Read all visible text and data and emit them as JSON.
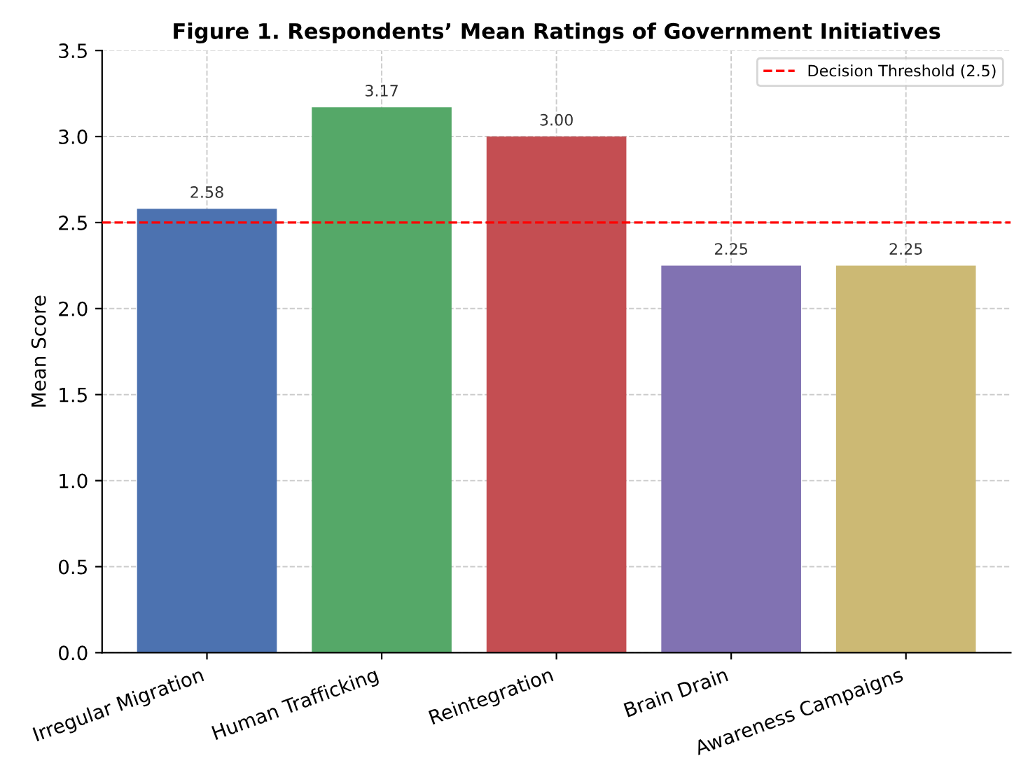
{
  "chart_data": {
    "type": "bar",
    "title": "Figure 1. Respondents’ Mean Ratings of Government Initiatives",
    "ylabel": "Mean Score",
    "categories": [
      "Irregular Migration",
      "Human Trafficking",
      "Reintegration",
      "Brain Drain",
      "Awareness Campaigns"
    ],
    "values": [
      2.58,
      3.17,
      3.0,
      2.25,
      2.25
    ],
    "value_labels": [
      "2.58",
      "3.17",
      "3.00",
      "2.25",
      "2.25"
    ],
    "colors": [
      "#4c72b0",
      "#55a868",
      "#c44e52",
      "#8172b2",
      "#ccb974"
    ],
    "ylim": [
      0,
      3.5
    ],
    "yticks": [
      {
        "value": 0,
        "label": "0.0"
      },
      {
        "value": 0.5,
        "label": "0.5"
      },
      {
        "value": 1,
        "label": "1.0"
      },
      {
        "value": 1.5,
        "label": "1.5"
      },
      {
        "value": 2,
        "label": "2.0"
      },
      {
        "value": 2.5,
        "label": "2.5"
      },
      {
        "value": 3,
        "label": "3.0"
      },
      {
        "value": 3.5,
        "label": "3.5"
      }
    ],
    "ref_lines": [
      {
        "axis": "y",
        "value": 2.5,
        "label": "Decision Threshold (2.5)",
        "color": "#ff0000",
        "line_style": "dashed"
      }
    ],
    "grid": true,
    "legend": "top right"
  }
}
